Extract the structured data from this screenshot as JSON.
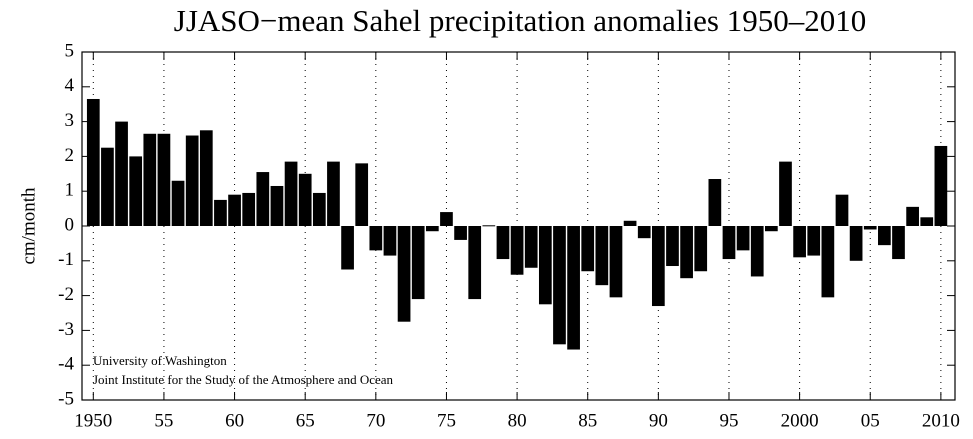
{
  "chart_data": {
    "type": "bar",
    "title": "JJASO−mean Sahel precipitation anomalies 1950–2010",
    "ylabel": "cm/month",
    "annotations": [
      "University of Washington",
      "Joint Institute for the Study of the Atmosphere and Ocean"
    ],
    "color": "#000000",
    "grid": "x",
    "x": [
      1950,
      1951,
      1952,
      1953,
      1954,
      1955,
      1956,
      1957,
      1958,
      1959,
      1960,
      1961,
      1962,
      1963,
      1964,
      1965,
      1966,
      1967,
      1968,
      1969,
      1970,
      1971,
      1972,
      1973,
      1974,
      1975,
      1976,
      1977,
      1978,
      1979,
      1980,
      1981,
      1982,
      1983,
      1984,
      1985,
      1986,
      1987,
      1988,
      1989,
      1990,
      1991,
      1992,
      1993,
      1994,
      1995,
      1996,
      1997,
      1998,
      1999,
      2000,
      2001,
      2002,
      2003,
      2004,
      2005,
      2006,
      2007,
      2008,
      2009,
      2010
    ],
    "values": [
      3.65,
      2.25,
      3.0,
      2.0,
      2.65,
      2.65,
      1.3,
      2.6,
      2.75,
      0.75,
      0.9,
      0.95,
      1.55,
      1.15,
      1.85,
      1.5,
      0.95,
      1.85,
      -1.25,
      1.8,
      -0.7,
      -0.85,
      -2.75,
      -2.1,
      -0.15,
      0.4,
      -0.4,
      -2.1,
      0.02,
      -0.95,
      -1.4,
      -1.2,
      -2.25,
      -3.4,
      -3.55,
      -1.3,
      -1.7,
      -2.05,
      0.15,
      -0.35,
      -2.3,
      -1.15,
      -1.5,
      -1.3,
      1.35,
      -0.95,
      -0.7,
      -1.45,
      -0.15,
      1.85,
      -0.9,
      -0.85,
      -2.05,
      0.9,
      -1.0,
      -0.1,
      -0.55,
      -0.95,
      0.55,
      0.25,
      2.3
    ],
    "xlim": [
      1949.2,
      2011
    ],
    "xticks": [
      1950,
      {
        "value": 1955,
        "label": "55"
      },
      {
        "value": 1960,
        "label": "60"
      },
      {
        "value": 1965,
        "label": "65"
      },
      {
        "value": 1970,
        "label": "70"
      },
      {
        "value": 1975,
        "label": "75"
      },
      {
        "value": 1980,
        "label": "80"
      },
      {
        "value": 1985,
        "label": "85"
      },
      {
        "value": 1990,
        "label": "90"
      },
      {
        "value": 1995,
        "label": "95"
      },
      2000,
      {
        "value": 2005,
        "label": "05"
      },
      2010
    ],
    "ylim": [
      -5,
      5
    ],
    "yticks": [
      -5,
      -4,
      -3,
      -2,
      -1,
      0,
      1,
      2,
      3,
      4,
      5
    ]
  }
}
